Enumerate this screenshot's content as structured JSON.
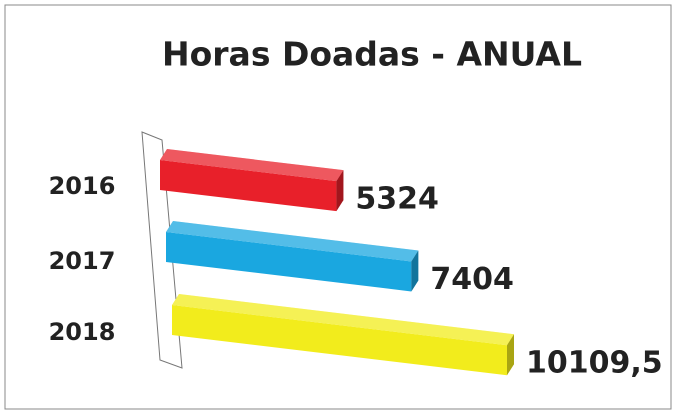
{
  "chart_data": {
    "type": "bar3d",
    "title": "Horas Doadas - ANUAL",
    "categories": [
      "2016",
      "2017",
      "2018"
    ],
    "values": [
      5324,
      7404,
      10109.5
    ],
    "value_labels": [
      "5324",
      "7404",
      "10109,5"
    ],
    "colors": [
      "#e8202a",
      "#1aa7e0",
      "#f2ec1c"
    ],
    "orientation": "horizontal"
  }
}
